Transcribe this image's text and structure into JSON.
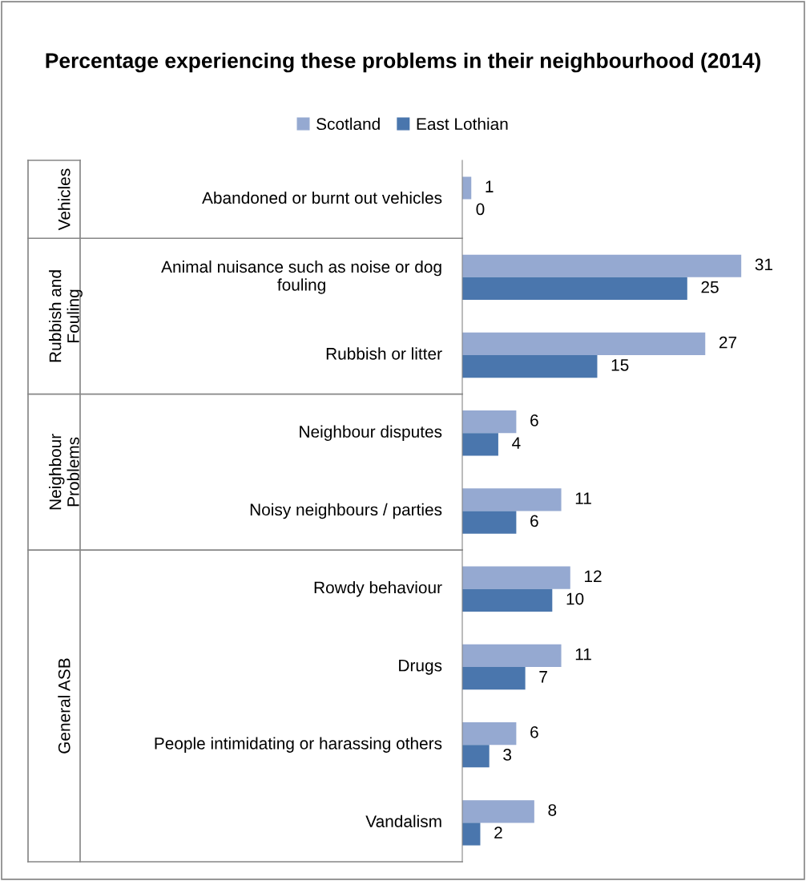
{
  "chart_data": [
    {
      "type": "bar",
      "orientation": "horizontal",
      "title": "Percentage experiencing these problems in their neighbourhood (2014)",
      "ylabel": "Vehicles",
      "legend": "top",
      "data_labels": true,
      "categories": [
        "Abandoned or burnt out vehicles"
      ],
      "series": [
        {
          "name": "Scotland",
          "color": "#95a9d1",
          "values": [
            1
          ]
        },
        {
          "name": "East Lothian",
          "color": "#4a76ad",
          "values": [
            0
          ]
        }
      ]
    },
    {
      "type": "bar",
      "orientation": "horizontal",
      "ylabel": "Rubbish and\nFouling",
      "data_labels": true,
      "categories": [
        "Animal nuisance such as noise or dog\nfouling",
        "Rubbish or litter"
      ],
      "series": [
        {
          "color": "#95a9d1",
          "values": [
            31,
            27
          ]
        },
        {
          "color": "#4a76ad",
          "values": [
            25,
            15
          ]
        }
      ]
    },
    {
      "type": "bar",
      "orientation": "horizontal",
      "ylabel": "Neighbour\nProblems",
      "data_labels": true,
      "categories": [
        "Neighbour disputes",
        "Noisy neighbours / parties"
      ],
      "series": [
        {
          "color": "#95a9d1",
          "values": [
            6,
            11
          ]
        },
        {
          "color": "#4a76ad",
          "values": [
            4,
            6
          ]
        }
      ]
    },
    {
      "type": "bar",
      "orientation": "horizontal",
      "ylabel": "General ASB",
      "data_labels": true,
      "categories": [
        "Rowdy behaviour",
        "Drugs",
        "People intimidating or harassing others",
        "Vandalism"
      ],
      "series": [
        {
          "color": "#95a9d1",
          "values": [
            12,
            11,
            6,
            8
          ]
        },
        {
          "color": "#4a76ad",
          "values": [
            10,
            7,
            3,
            2
          ]
        }
      ]
    }
  ]
}
